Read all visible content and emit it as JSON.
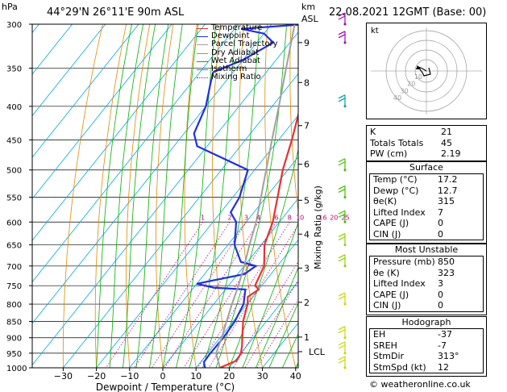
{
  "header": {
    "p_unit": "hPa",
    "location": "44°29'N  26°11'E  90m  ASL",
    "km_label": "km",
    "asl_label": "ASL",
    "datetime": "22.08.2021  12GMT  (Base: 00)"
  },
  "legend": [
    {
      "label": "Temperature",
      "color": "#e83030"
    },
    {
      "label": "Dewpoint",
      "color": "#2030e0"
    },
    {
      "label": "Parcel Trajectory",
      "color": "#a0a0a0"
    },
    {
      "label": "Dry Adiabat",
      "color": "#e08a00"
    },
    {
      "label": "Wet Adiabat",
      "color": "#00b000"
    },
    {
      "label": "Isotherm",
      "color": "#00a8e0"
    },
    {
      "label": "Mixing Ratio",
      "color": "#c0007a"
    }
  ],
  "chart_data": {
    "type": "line",
    "xlabel": "Dewpoint / Temperature (°C)",
    "ylabel_right": "Mixing Ratio (g/kg)",
    "x_ticks": [
      -30,
      -20,
      -10,
      0,
      10,
      20,
      30,
      40
    ],
    "x_tick_labels": [
      "−30",
      "−20",
      "−10",
      "0",
      "10",
      "20",
      "30",
      "40"
    ],
    "pressure_levels": [
      300,
      350,
      400,
      450,
      500,
      550,
      600,
      650,
      700,
      750,
      800,
      850,
      900,
      950,
      1000
    ],
    "pressure_labels": [
      "300",
      "350",
      "400",
      "450",
      "500",
      "550",
      "600",
      "650",
      "700",
      "750",
      "800",
      "850",
      "900",
      "950",
      "1000"
    ],
    "height_ticks": [
      {
        "km": "9",
        "p": 320
      },
      {
        "km": "8",
        "p": 368
      },
      {
        "km": "7",
        "p": 428
      },
      {
        "km": "6",
        "p": 490
      },
      {
        "km": "5",
        "p": 556
      },
      {
        "km": "4",
        "p": 626
      },
      {
        "km": "3",
        "p": 705
      },
      {
        "km": "2",
        "p": 795
      },
      {
        "km": "1",
        "p": 898
      }
    ],
    "lcl_label": "LCL",
    "lcl_p": 945,
    "mixing_ratio_labels": [
      {
        "w": 1,
        "label": "1"
      },
      {
        "w": 2,
        "label": "2"
      },
      {
        "w": 3,
        "label": "3"
      },
      {
        "w": 4,
        "label": "4"
      },
      {
        "w": 6,
        "label": "6"
      },
      {
        "w": 8,
        "label": "8"
      },
      {
        "w": 10,
        "label": "10"
      },
      {
        "w": 16,
        "label": "16"
      },
      {
        "w": 20,
        "label": "20"
      },
      {
        "w": 25,
        "label": "25"
      }
    ],
    "series": [
      {
        "name": "Temperature",
        "color": "#e83030",
        "points": [
          [
            1000,
            17.2
          ],
          [
            975,
            20.5
          ],
          [
            950,
            20.0
          ],
          [
            925,
            18.5
          ],
          [
            900,
            16.7
          ],
          [
            850,
            13.0
          ],
          [
            800,
            10.2
          ],
          [
            780,
            8.5
          ],
          [
            760,
            10.0
          ],
          [
            750,
            8.0
          ],
          [
            700,
            6.0
          ],
          [
            650,
            1.0
          ],
          [
            600,
            -2.0
          ],
          [
            550,
            -6.5
          ],
          [
            500,
            -11.5
          ],
          [
            450,
            -16.0
          ],
          [
            400,
            -21.5
          ],
          [
            350,
            -28.0
          ],
          [
            320,
            -32.0
          ],
          [
            300,
            -34.0
          ]
        ]
      },
      {
        "name": "Dewpoint",
        "color": "#2030e0",
        "points": [
          [
            1000,
            12.7
          ],
          [
            980,
            11.0
          ],
          [
            950,
            10.8
          ],
          [
            900,
            11.0
          ],
          [
            850,
            10.5
          ],
          [
            800,
            9.0
          ],
          [
            760,
            6.0
          ],
          [
            755,
            -4.0
          ],
          [
            745,
            -10.0
          ],
          [
            720,
            2.0
          ],
          [
            700,
            3.5
          ],
          [
            690,
            -2.0
          ],
          [
            650,
            -8.0
          ],
          [
            600,
            -13.0
          ],
          [
            580,
            -17.0
          ],
          [
            550,
            -18.0
          ],
          [
            500,
            -22.0
          ],
          [
            460,
            -43.0
          ],
          [
            440,
            -47.0
          ],
          [
            400,
            -50.0
          ],
          [
            370,
            -54.0
          ],
          [
            355,
            -56.0
          ],
          [
            340,
            -50.0
          ],
          [
            320,
            -45.0
          ],
          [
            310,
            -50.0
          ],
          [
            305,
            -58.0
          ],
          [
            300,
            -40.0
          ]
        ]
      },
      {
        "name": "Parcel Trajectory",
        "color": "#a0a0a0",
        "points": [
          [
            1000,
            17.2
          ],
          [
            950,
            12.5
          ],
          [
            900,
            10.5
          ],
          [
            850,
            8.0
          ],
          [
            800,
            5.5
          ],
          [
            750,
            3.0
          ],
          [
            700,
            0.0
          ],
          [
            650,
            -3.5
          ],
          [
            600,
            -7.0
          ],
          [
            550,
            -11.5
          ],
          [
            500,
            -16.5
          ],
          [
            450,
            -22.0
          ],
          [
            400,
            -28.0
          ],
          [
            350,
            -35.0
          ],
          [
            300,
            -43.0
          ]
        ]
      }
    ]
  },
  "hodograph": {
    "unit_label": "kt",
    "ring_labels": [
      "10",
      "20",
      "30",
      "40"
    ]
  },
  "indices": {
    "rows": [
      {
        "label": "K",
        "value": "21"
      },
      {
        "label": "Totals Totals",
        "value": "45"
      },
      {
        "label": "PW (cm)",
        "value": "2.19"
      }
    ],
    "surface": {
      "title": "Surface",
      "rows": [
        {
          "label": "Temp (°C)",
          "value": "17.2"
        },
        {
          "label": "Dewp (°C)",
          "value": "12.7"
        },
        {
          "label": "θe(K)",
          "value": "315"
        },
        {
          "label": "Lifted Index",
          "value": "7"
        },
        {
          "label": "CAPE (J)",
          "value": "0"
        },
        {
          "label": "CIN (J)",
          "value": "0"
        }
      ]
    },
    "most_unstable": {
      "title": "Most Unstable",
      "rows": [
        {
          "label": "Pressure (mb)",
          "value": "850"
        },
        {
          "label": "θe (K)",
          "value": "323"
        },
        {
          "label": "Lifted Index",
          "value": "3"
        },
        {
          "label": "CAPE (J)",
          "value": "0"
        },
        {
          "label": "CIN (J)",
          "value": "0"
        }
      ]
    },
    "hodograph": {
      "title": "Hodograph",
      "rows": [
        {
          "label": "EH",
          "value": "-37"
        },
        {
          "label": "SREH",
          "value": "-7"
        },
        {
          "label": "StmDir",
          "value": "313°"
        },
        {
          "label": "StmSpd (kt)",
          "value": "12"
        }
      ]
    }
  },
  "copyright": "© weatheronline.co.uk"
}
